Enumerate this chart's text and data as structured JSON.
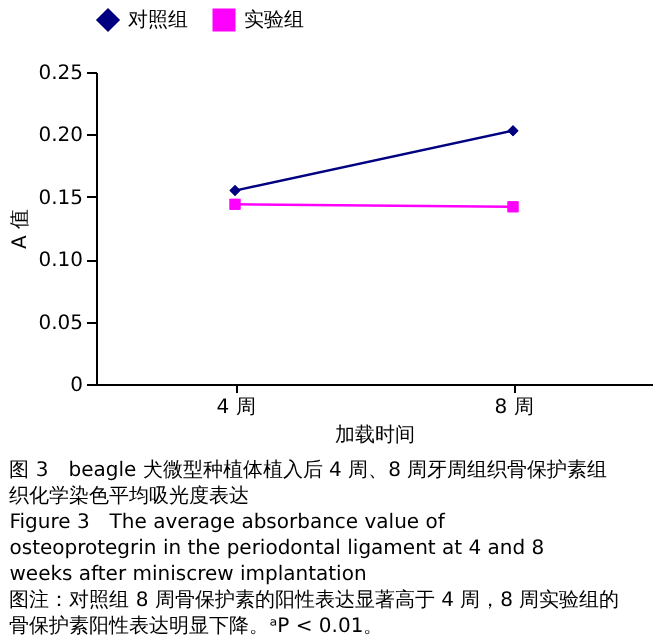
{
  "chart_data": {
    "type": "line",
    "xlabel": "加载时间",
    "ylabel": "A 值",
    "categories": [
      "4 周",
      "8 周"
    ],
    "series": [
      {
        "name": "对照组",
        "color": "#000080",
        "marker": "diamond",
        "values": [
          0.155,
          0.203
        ]
      },
      {
        "name": "实验组",
        "color": "#ff00ff",
        "marker": "square",
        "values": [
          0.144,
          0.142
        ]
      }
    ],
    "ylim": [
      0,
      0.25
    ],
    "yticks": [
      0,
      {
        "value": 0.05,
        "label": "0.05"
      },
      {
        "value": 0.1,
        "label": "0.10"
      },
      {
        "value": 0.15,
        "label": "0.15"
      },
      {
        "value": 0.2,
        "label": "0.20"
      },
      {
        "value": 0.25,
        "label": "0.25"
      }
    ],
    "grid": false,
    "legend": "top",
    "line_style": "solid",
    "annotations": [
      "图 3　beagle 犬微型种植体植入后 4 周、8 周牙周组织骨保护素组织化学染色平均吸光度表达",
      "Figure 3　The average absorbance value of osteoprotegrin in the periodontal ligament at 4 and 8 weeks after miniscrew implantation",
      "图注：对照组 8 周骨保护素的阳性表达显著高于 4 周，8 周实验组的骨保护素阳性表达明显下降。ᵃP < 0.01。"
    ]
  }
}
